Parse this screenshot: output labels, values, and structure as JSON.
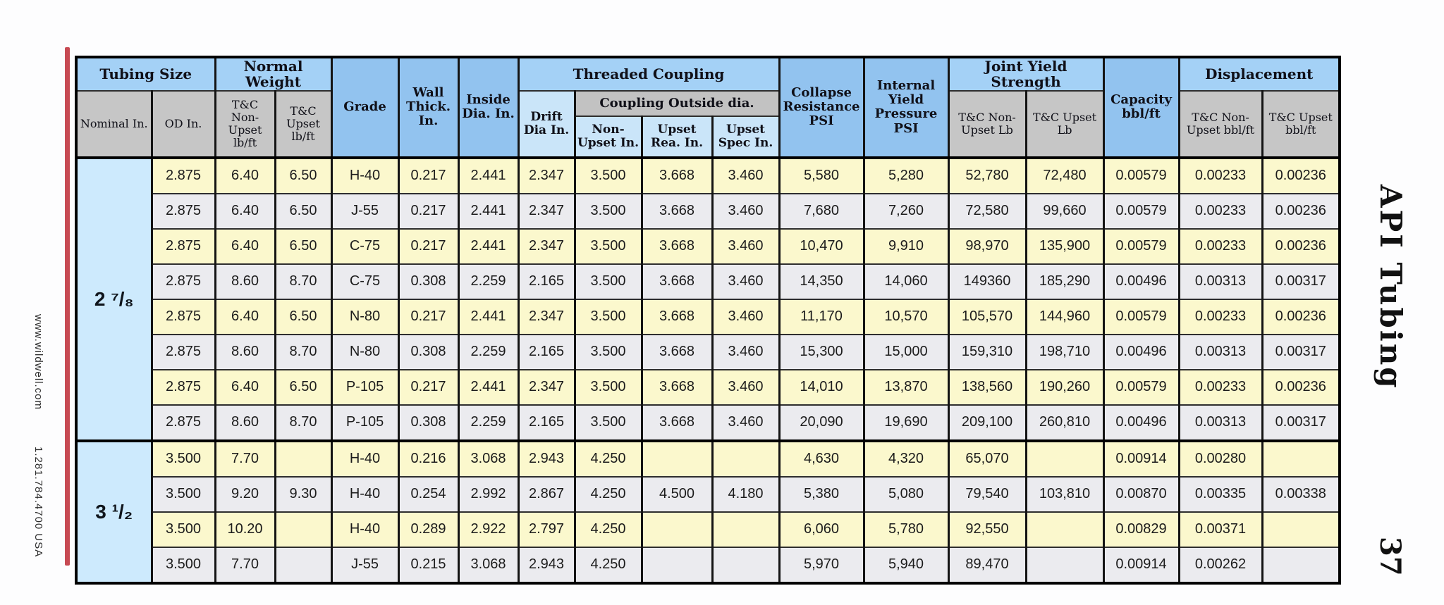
{
  "page": {
    "left_margin": {
      "website": "www.wildwell.com",
      "phone": "1.281.784.4700 USA"
    },
    "right_margin": {
      "section_title": "API Tubing",
      "page_number": "37"
    },
    "colors": {
      "header_blue": "#a4d1f6",
      "column_blue": "#92c3ef",
      "subheader_gray": "#c6c6c6",
      "subheader_lightblue": "#cae5f9",
      "row_yellow": "#fbf8cd",
      "row_gray": "#ebebef",
      "group_label_blue": "#cdeafd",
      "red_rule": "#c74a53"
    }
  },
  "table": {
    "headers": {
      "tubing_size": "Tubing Size",
      "normal_weight": "Normal Weight",
      "grade": "Grade",
      "wall_thick": "Wall Thick. In.",
      "inside_dia": "Inside Dia. In.",
      "threaded_coupling": "Threaded Coupling",
      "collapse_resistance": "Collapse Resistance PSI",
      "internal_yield": "Internal Yield Pressure PSI",
      "joint_yield_strength": "Joint Yield Strength",
      "capacity": "Capacity bbl/ft",
      "displacement": "Displacement",
      "nominal": "Nominal In.",
      "od": "OD In.",
      "tc_non_upset_lbft": "T&C Non-Upset lb/ft",
      "tc_upset_lbft": "T&C Upset lb/ft",
      "drift_dia": "Drift Dia In.",
      "coupling_outside_dia": "Coupling Outside dia.",
      "coupling_non_upset": "Non-Upset In.",
      "coupling_upset_rea": "Upset Rea. In.",
      "coupling_upset_spec": "Upset Spec In.",
      "joint_non_upset": "T&C Non-Upset Lb",
      "joint_upset": "T&C Upset Lb",
      "disp_non_upset": "T&C Non- Upset bbl/ft",
      "disp_upset": "T&C Upset bbl/ft"
    },
    "column_keys": [
      "od",
      "tc_non_upset_lbft",
      "tc_upset_lbft",
      "grade",
      "wall_thick",
      "inside_dia",
      "drift_dia",
      "coupling_non_upset",
      "coupling_upset_rea",
      "coupling_upset_spec",
      "collapse_resistance",
      "internal_yield",
      "joint_non_upset",
      "joint_upset",
      "capacity",
      "disp_non_upset",
      "disp_upset"
    ],
    "groups": [
      {
        "nominal": "2 ⁷/₈",
        "rows": [
          [
            "2.875",
            "6.40",
            "6.50",
            "H-40",
            "0.217",
            "2.441",
            "2.347",
            "3.500",
            "3.668",
            "3.460",
            "5,580",
            "5,280",
            "52,780",
            "72,480",
            "0.00579",
            "0.00233",
            "0.00236"
          ],
          [
            "2.875",
            "6.40",
            "6.50",
            "J-55",
            "0.217",
            "2.441",
            "2.347",
            "3.500",
            "3.668",
            "3.460",
            "7,680",
            "7,260",
            "72,580",
            "99,660",
            "0.00579",
            "0.00233",
            "0.00236"
          ],
          [
            "2.875",
            "6.40",
            "6.50",
            "C-75",
            "0.217",
            "2.441",
            "2.347",
            "3.500",
            "3.668",
            "3.460",
            "10,470",
            "9,910",
            "98,970",
            "135,900",
            "0.00579",
            "0.00233",
            "0.00236"
          ],
          [
            "2.875",
            "8.60",
            "8.70",
            "C-75",
            "0.308",
            "2.259",
            "2.165",
            "3.500",
            "3.668",
            "3.460",
            "14,350",
            "14,060",
            "149360",
            "185,290",
            "0.00496",
            "0.00313",
            "0.00317"
          ],
          [
            "2.875",
            "6.40",
            "6.50",
            "N-80",
            "0.217",
            "2.441",
            "2.347",
            "3.500",
            "3.668",
            "3.460",
            "11,170",
            "10,570",
            "105,570",
            "144,960",
            "0.00579",
            "0.00233",
            "0.00236"
          ],
          [
            "2.875",
            "8.60",
            "8.70",
            "N-80",
            "0.308",
            "2.259",
            "2.165",
            "3.500",
            "3.668",
            "3.460",
            "15,300",
            "15,000",
            "159,310",
            "198,710",
            "0.00496",
            "0.00313",
            "0.00317"
          ],
          [
            "2.875",
            "6.40",
            "6.50",
            "P-105",
            "0.217",
            "2.441",
            "2.347",
            "3.500",
            "3.668",
            "3.460",
            "14,010",
            "13,870",
            "138,560",
            "190,260",
            "0.00579",
            "0.00233",
            "0.00236"
          ],
          [
            "2.875",
            "8.60",
            "8.70",
            "P-105",
            "0.308",
            "2.259",
            "2.165",
            "3.500",
            "3.668",
            "3.460",
            "20,090",
            "19,690",
            "209,100",
            "260,810",
            "0.00496",
            "0.00313",
            "0.00317"
          ]
        ]
      },
      {
        "nominal": "3 ¹/₂",
        "rows": [
          [
            "3.500",
            "7.70",
            "",
            "H-40",
            "0.216",
            "3.068",
            "2.943",
            "4.250",
            "",
            "",
            "4,630",
            "4,320",
            "65,070",
            "",
            "0.00914",
            "0.00280",
            ""
          ],
          [
            "3.500",
            "9.20",
            "9.30",
            "H-40",
            "0.254",
            "2.992",
            "2.867",
            "4.250",
            "4.500",
            "4.180",
            "5,380",
            "5,080",
            "79,540",
            "103,810",
            "0.00870",
            "0.00335",
            "0.00338"
          ],
          [
            "3.500",
            "10.20",
            "",
            "H-40",
            "0.289",
            "2.922",
            "2.797",
            "4.250",
            "",
            "",
            "6,060",
            "5,780",
            "92,550",
            "",
            "0.00829",
            "0.00371",
            ""
          ],
          [
            "3.500",
            "7.70",
            "",
            "J-55",
            "0.215",
            "3.068",
            "2.943",
            "4.250",
            "",
            "",
            "5,970",
            "5,940",
            "89,470",
            "",
            "0.00914",
            "0.00262",
            ""
          ]
        ]
      }
    ]
  }
}
